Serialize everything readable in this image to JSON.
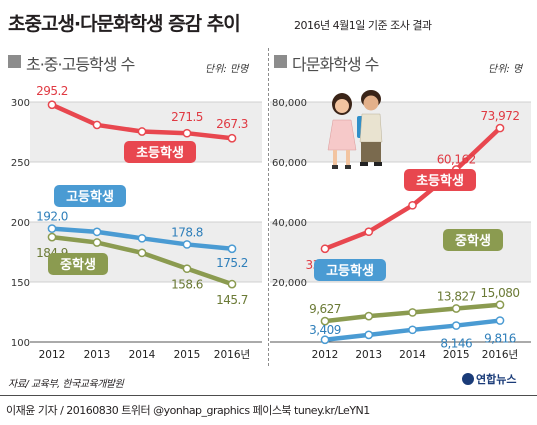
{
  "header": {
    "title": "초중고생·다문화학생 증감 추이",
    "subtitle": "2016년 4월1일 기준 조사 결과"
  },
  "footer": {
    "source": "자료/ 교육부, 한국교육개발원",
    "credit": "이재윤 기자 / 20160830  트위터 @yonhap_graphics  페이스북 tuney.kr/LeYN1",
    "logo": "연합뉴스"
  },
  "chart_data": [
    {
      "type": "line",
      "title": "초·중·고등학생 수",
      "unit": "단위: 만명",
      "categories": [
        "2012",
        "2013",
        "2014",
        "2015",
        "2016년"
      ],
      "ylim": [
        100,
        300
      ],
      "yticks": [
        "300",
        "250",
        "200",
        "150",
        "100"
      ],
      "series": [
        {
          "name": "초등학생",
          "values": [
            295.2,
            278.4,
            272.9,
            271.5,
            267.3
          ],
          "labels": [
            "295.2",
            "",
            "",
            "271.5",
            "267.3"
          ],
          "color": "#e8474f"
        },
        {
          "name": "고등학생",
          "values": [
            192.0,
            189.3,
            183.9,
            178.8,
            175.2
          ],
          "labels": [
            "192.0",
            "",
            "",
            "178.8",
            "175.2"
          ],
          "color": "#4a9bd3"
        },
        {
          "name": "중학생",
          "values": [
            184.9,
            180.4,
            171.8,
            158.6,
            145.7
          ],
          "labels": [
            "184.9",
            "",
            "",
            "158.6",
            "145.7"
          ],
          "color": "#8b9b50"
        }
      ]
    },
    {
      "type": "line",
      "title": "다문화학생 수",
      "unit": "단위: 명",
      "categories": [
        "2012",
        "2013",
        "2014",
        "2015",
        "2016년"
      ],
      "ylim": [
        0,
        80000
      ],
      "yticks": [
        "80,000",
        "60,000",
        "40,000",
        "20,000"
      ],
      "series": [
        {
          "name": "초등학생",
          "values": [
            33740,
            39430,
            48225,
            60162,
            73972
          ],
          "labels": [
            "33,740",
            "",
            "",
            "60,162",
            "73,972"
          ],
          "color": "#e8474f"
        },
        {
          "name": "중학생",
          "values": [
            9627,
            11294,
            12525,
            13827,
            15080
          ],
          "labels": [
            "9,627",
            "",
            "",
            "13,827",
            "15,080"
          ],
          "color": "#8b9b50"
        },
        {
          "name": "고등학생",
          "values": [
            3409,
            5044,
            6734,
            8146,
            9816
          ],
          "labels": [
            "3,409",
            "",
            "",
            "8,146",
            "9,816"
          ],
          "color": "#4a9bd3"
        }
      ]
    }
  ]
}
